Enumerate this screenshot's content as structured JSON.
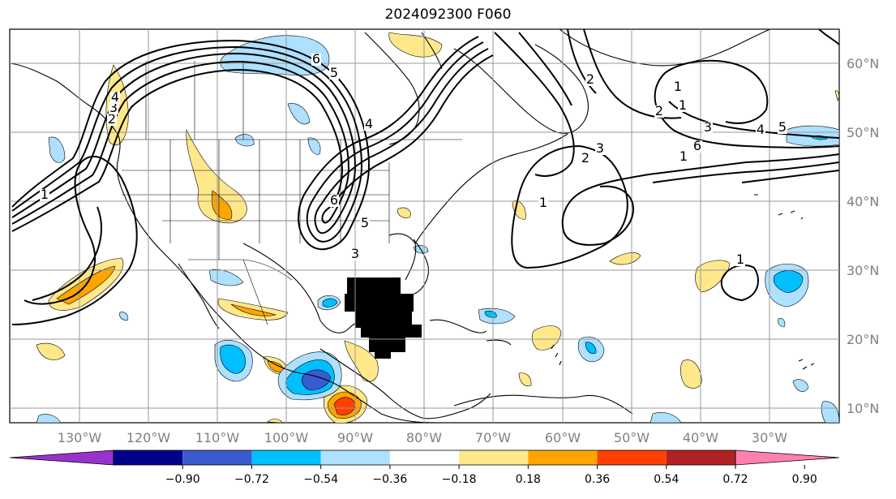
{
  "title": "2024092300 F060",
  "lon_labels": [
    "130°W",
    "120°W",
    "110°W",
    "100°W",
    "90°W",
    "80°W",
    "70°W",
    "60°W",
    "50°W",
    "40°W",
    "30°W"
  ],
  "lat_labels": [
    "60°N",
    "50°N",
    "40°N",
    "30°N",
    "20°N",
    "10°N"
  ],
  "colorbar": {
    "ticks": [
      "−0.90",
      "−0.72",
      "−0.54",
      "−0.36",
      "−0.18",
      "0.18",
      "0.36",
      "0.54",
      "0.72",
      "0.90"
    ],
    "colors": [
      "#9932cc",
      "#00008b",
      "#3a5bd0",
      "#00bfff",
      "#aee0ff",
      "#ffffff",
      "#ffe88a",
      "#ffa500",
      "#ff4000",
      "#b22222",
      "#ff80b0"
    ]
  },
  "contour_labels": [
    "1",
    "2",
    "3",
    "4",
    "5",
    "6",
    "6",
    "5",
    "4",
    "3",
    "2",
    "1",
    "1",
    "2",
    "3",
    "4",
    "5",
    "6",
    "1",
    "2",
    "3",
    "1",
    "1"
  ],
  "colors": {
    "neg_light": "#aee0ff",
    "neg_mid": "#00bfff",
    "neg_dark": "#3a5bd0",
    "pos_light": "#ffe88a",
    "pos_mid": "#ffa500",
    "pos_dark": "#ff4000",
    "grid": "#999999",
    "contour": "#000000"
  }
}
